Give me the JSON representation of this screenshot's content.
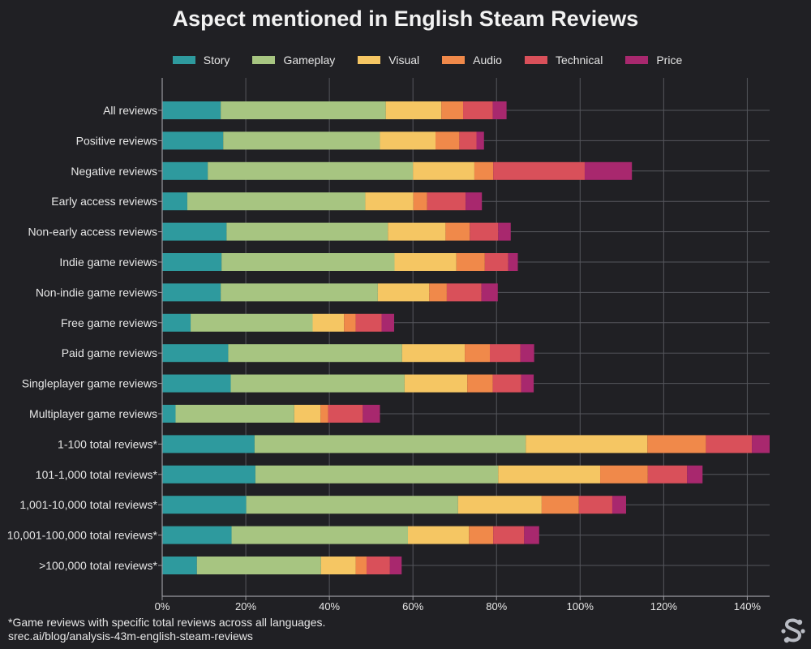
{
  "chart_data": {
    "type": "bar",
    "orientation": "horizontal",
    "stacked": true,
    "title": "Aspect mentioned in English Steam Reviews",
    "categories": [
      "All reviews",
      "Positive reviews",
      "Negative reviews",
      "Early access reviews",
      "Non-early access reviews",
      "Indie game reviews",
      "Non-indie game reviews",
      "Free game reviews",
      "Paid game reviews",
      "Singleplayer game reviews",
      "Multiplayer game reviews",
      "1-100 total reviews*",
      "101-1,000 total reviews*",
      "1,001-10,000 total reviews*",
      "10,001-100,000 total reviews*",
      ">100,000 total reviews*"
    ],
    "series": [
      {
        "name": "Story",
        "color": "#2e9a9e",
        "values": [
          14.0,
          14.6,
          10.9,
          6.0,
          15.4,
          14.2,
          14.0,
          6.8,
          15.8,
          16.4,
          3.2,
          22.1,
          22.3,
          20.1,
          16.6,
          8.3
        ]
      },
      {
        "name": "Gameplay",
        "color": "#a7c581",
        "values": [
          39.5,
          37.5,
          49.1,
          42.6,
          38.6,
          41.4,
          37.6,
          29.2,
          41.6,
          41.6,
          28.4,
          64.9,
          58.1,
          50.7,
          42.2,
          29.7
        ]
      },
      {
        "name": "Visual",
        "color": "#f5c663",
        "values": [
          13.3,
          13.3,
          14.7,
          11.5,
          13.8,
          14.8,
          12.3,
          7.5,
          15.0,
          15.0,
          6.3,
          29.1,
          24.4,
          20.0,
          14.6,
          8.3
        ]
      },
      {
        "name": "Audio",
        "color": "#f0894a",
        "values": [
          5.2,
          5.7,
          4.5,
          3.3,
          5.8,
          6.8,
          4.2,
          2.8,
          6.0,
          6.1,
          1.8,
          14.0,
          11.4,
          8.9,
          5.8,
          2.6
        ]
      },
      {
        "name": "Technical",
        "color": "#d9505a",
        "values": [
          7.1,
          4.1,
          21.9,
          9.2,
          6.8,
          5.6,
          8.3,
          6.2,
          7.3,
          6.8,
          8.3,
          11.0,
          9.4,
          8.0,
          7.4,
          5.6
        ]
      },
      {
        "name": "Price",
        "color": "#a8286e",
        "values": [
          3.3,
          1.8,
          11.3,
          3.9,
          3.0,
          2.3,
          3.9,
          3.0,
          3.3,
          3.0,
          4.1,
          4.5,
          3.7,
          3.3,
          3.6,
          2.8
        ]
      }
    ],
    "xlim": [
      0,
      145
    ],
    "xticks": [
      "0%",
      "20%",
      "40%",
      "60%",
      "80%",
      "100%",
      "120%",
      "140%"
    ],
    "grid": true,
    "legend": "top-center"
  },
  "footnote": {
    "line1": "*Game reviews with specific total reviews across all languages.",
    "line2": "srec.ai/blog/analysis-43m-english-steam-reviews"
  },
  "colors": {
    "background": "#202024",
    "grid": "#55565c",
    "axis": "#9a9aa0",
    "text": "#e6e6e6"
  },
  "icons": {
    "logo": "srec-logo-icon"
  }
}
